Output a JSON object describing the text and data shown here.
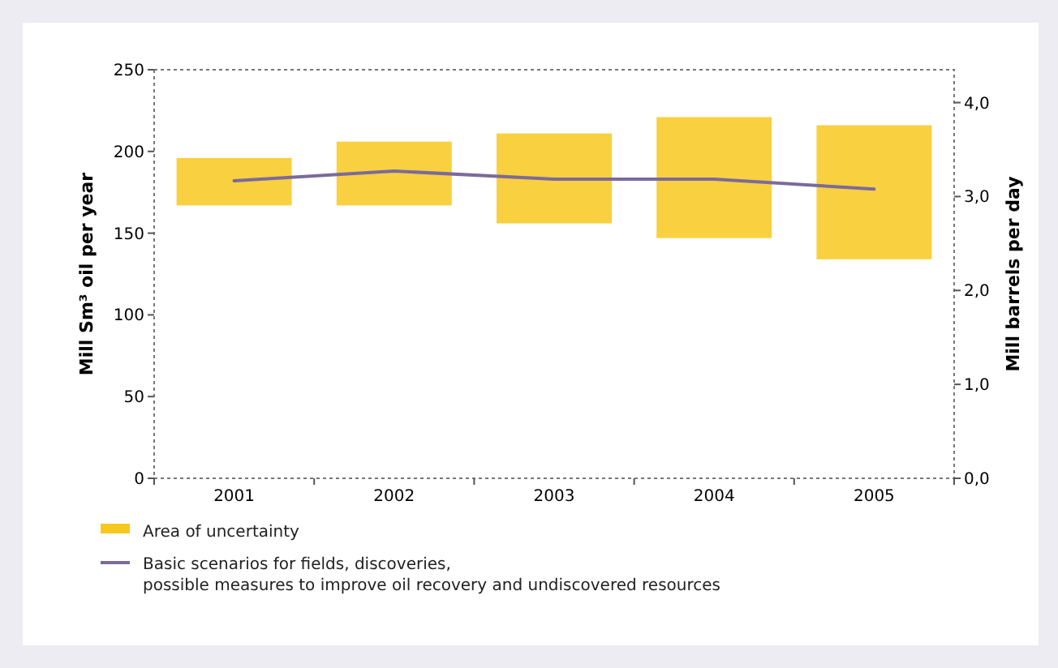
{
  "chart_data": {
    "type": "bar",
    "categories": [
      "2001",
      "2002",
      "2003",
      "2004",
      "2005"
    ],
    "ylabel": "Mill Sm³ oil per year",
    "y2label": "Mill barrels per day",
    "ylim": [
      0,
      250
    ],
    "yticks": [
      0,
      50,
      100,
      150,
      200,
      250
    ],
    "y2lim": [
      0,
      4.35
    ],
    "y2ticks": [
      {
        "value": 0,
        "label": "0,0"
      },
      {
        "value": 1,
        "label": "1,0"
      },
      {
        "value": 2,
        "label": "2,0"
      },
      {
        "value": 3,
        "label": "3,0"
      },
      {
        "value": 4,
        "label": "4,0"
      }
    ],
    "legend": "bottom",
    "series": [
      {
        "name": "Area of uncertainty",
        "color": "#f7c81e",
        "base": [
          167,
          167,
          156,
          147,
          134
        ],
        "values": [
          29,
          39,
          55,
          74,
          82
        ]
      },
      {
        "name": "Basic scenarios for fields, discoveries, possible measures to improve oil recovery and undiscovered resources",
        "type": "line",
        "color": "#7b6a9c",
        "values": [
          182,
          188,
          183,
          183,
          177
        ]
      }
    ]
  }
}
